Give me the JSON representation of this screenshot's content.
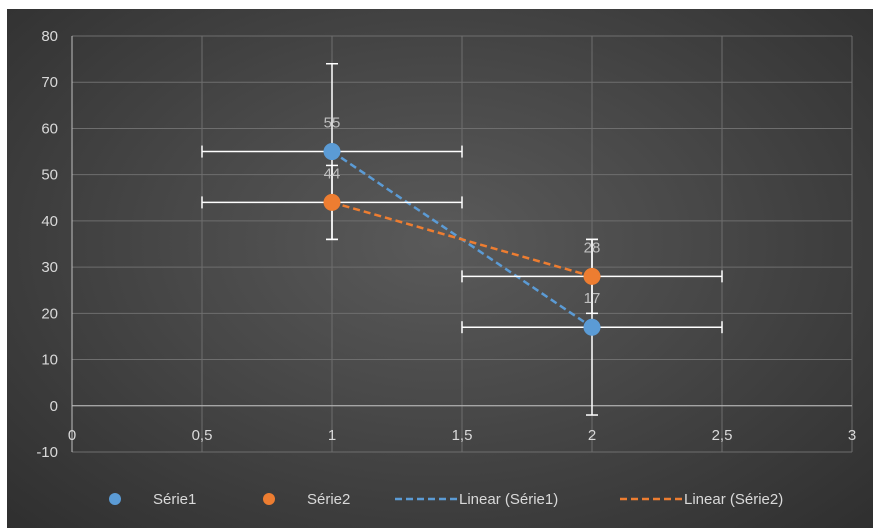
{
  "chart_data": {
    "type": "scatter",
    "title": "",
    "xlabel": "",
    "ylabel": "",
    "xlim": [
      0,
      3
    ],
    "ylim": [
      -10,
      80
    ],
    "x_ticks": [
      "0",
      "0,5",
      "1",
      "1,5",
      "2",
      "2,5",
      "3"
    ],
    "x_tick_values": [
      0,
      0.5,
      1,
      1.5,
      2,
      2.5,
      3
    ],
    "y_ticks": [
      "-10",
      "0",
      "10",
      "20",
      "30",
      "40",
      "50",
      "60",
      "70",
      "80"
    ],
    "y_tick_values": [
      -10,
      0,
      10,
      20,
      30,
      40,
      50,
      60,
      70,
      80
    ],
    "grid": true,
    "legend_position": "bottom",
    "series": [
      {
        "name": "Série1",
        "color": "#5b9bd5",
        "points": [
          {
            "x": 1,
            "y": 55,
            "label": "55",
            "x_err": 0.5,
            "y_err_plus": 19,
            "y_err_minus": 19
          },
          {
            "x": 2,
            "y": 17,
            "label": "17",
            "x_err": 0.5,
            "y_err_plus": 19,
            "y_err_minus": 19
          }
        ],
        "trendline_name": "Linear (Série1)"
      },
      {
        "name": "Série2",
        "color": "#ed7d31",
        "points": [
          {
            "x": 1,
            "y": 44,
            "label": "44",
            "x_err": 0.5,
            "y_err_plus": 8,
            "y_err_minus": 8
          },
          {
            "x": 2,
            "y": 28,
            "label": "28",
            "x_err": 0.5,
            "y_err_plus": 8,
            "y_err_minus": 8
          }
        ],
        "trendline_name": "Linear (Série2)"
      }
    ]
  }
}
